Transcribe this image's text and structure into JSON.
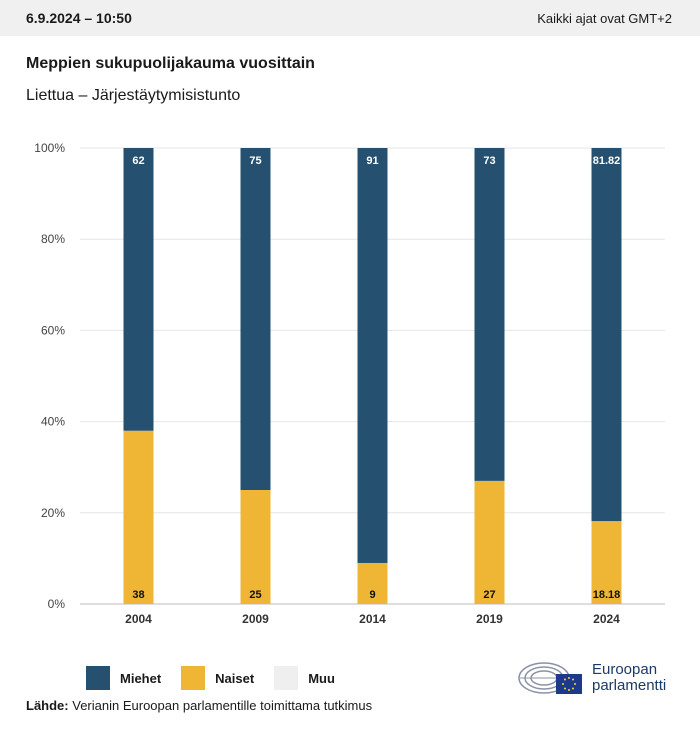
{
  "header": {
    "datetime": "6.9.2024 – 10:50",
    "timezone": "Kaikki ajat ovat GMT+2"
  },
  "title": "Meppien sukupuolijakauma vuosittain",
  "subtitle": "Liettua – Järjestäytymisistunto",
  "legend": [
    {
      "label": "Miehet",
      "color": "#25506f"
    },
    {
      "label": "Naiset",
      "color": "#efb535"
    },
    {
      "label": "Muu",
      "color": "#efefef"
    }
  ],
  "source": {
    "label": "Lähde:",
    "text": "Verianin Euroopan parlamentille toimittama tutkimus"
  },
  "logo": {
    "line1": "Euroopan",
    "line2": "parlamentti"
  },
  "chart_data": {
    "type": "bar",
    "stacked": true,
    "categories": [
      "2004",
      "2009",
      "2014",
      "2019",
      "2024"
    ],
    "series": [
      {
        "name": "Miehet",
        "values": [
          62,
          75,
          91,
          73,
          81.82
        ],
        "color": "#25506f",
        "labels": [
          "62",
          "75",
          "91",
          "73",
          "81.82"
        ]
      },
      {
        "name": "Naiset",
        "values": [
          38,
          25,
          9,
          27,
          18.18
        ],
        "color": "#efb535",
        "labels": [
          "38",
          "25",
          "9",
          "27",
          "18.18"
        ]
      }
    ],
    "yticks": [
      "0%",
      "20%",
      "40%",
      "60%",
      "80%",
      "100%"
    ],
    "ylim": [
      0,
      100
    ],
    "grid": true
  }
}
